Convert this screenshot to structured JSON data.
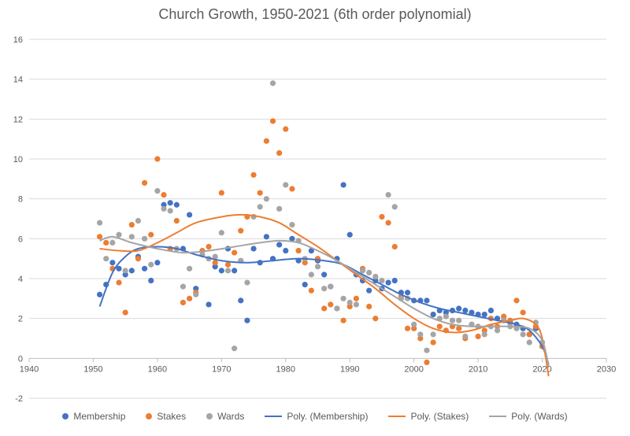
{
  "chart_data": {
    "type": "scatter",
    "title": "Church Growth, 1950-2021 (6th order polynomial)",
    "xlim": [
      1940,
      2030
    ],
    "ylim": [
      -2,
      16
    ],
    "x_ticks": [
      1940,
      1950,
      1960,
      1970,
      1980,
      1990,
      2000,
      2010,
      2020,
      2030
    ],
    "y_ticks": [
      -2,
      0,
      2,
      4,
      6,
      8,
      10,
      12,
      14,
      16
    ],
    "grid": "horizontal",
    "legend_position": "bottom",
    "series": [
      {
        "name": "Membership",
        "color": "#4472C4",
        "points": [
          [
            1951,
            3.2
          ],
          [
            1952,
            3.7
          ],
          [
            1953,
            4.8
          ],
          [
            1954,
            4.5
          ],
          [
            1955,
            4.2
          ],
          [
            1956,
            4.4
          ],
          [
            1957,
            5.1
          ],
          [
            1958,
            4.5
          ],
          [
            1959,
            3.9
          ],
          [
            1960,
            4.8
          ],
          [
            1961,
            7.7
          ],
          [
            1962,
            7.8
          ],
          [
            1963,
            7.7
          ],
          [
            1964,
            5.5
          ],
          [
            1965,
            7.2
          ],
          [
            1966,
            3.5
          ],
          [
            1968,
            2.7
          ],
          [
            1969,
            4.6
          ],
          [
            1970,
            4.4
          ],
          [
            1971,
            5.5
          ],
          [
            1972,
            4.4
          ],
          [
            1973,
            2.9
          ],
          [
            1974,
            1.9
          ],
          [
            1975,
            5.5
          ],
          [
            1976,
            4.8
          ],
          [
            1977,
            6.1
          ],
          [
            1978,
            5.0
          ],
          [
            1979,
            5.7
          ],
          [
            1980,
            5.4
          ],
          [
            1981,
            6.0
          ],
          [
            1982,
            4.9
          ],
          [
            1983,
            3.7
          ],
          [
            1984,
            5.4
          ],
          [
            1985,
            4.9
          ],
          [
            1986,
            4.2
          ],
          [
            1987,
            3.6
          ],
          [
            1988,
            5.0
          ],
          [
            1989,
            8.7
          ],
          [
            1990,
            6.2
          ],
          [
            1991,
            4.2
          ],
          [
            1992,
            3.9
          ],
          [
            1993,
            3.4
          ],
          [
            1994,
            3.9
          ],
          [
            1995,
            3.5
          ],
          [
            1996,
            3.8
          ],
          [
            1997,
            3.9
          ],
          [
            1998,
            3.3
          ],
          [
            1999,
            3.3
          ],
          [
            2000,
            2.9
          ],
          [
            2001,
            2.9
          ],
          [
            2002,
            2.9
          ],
          [
            2003,
            2.2
          ],
          [
            2004,
            2.4
          ],
          [
            2005,
            2.3
          ],
          [
            2006,
            2.4
          ],
          [
            2007,
            2.5
          ],
          [
            2008,
            2.4
          ],
          [
            2009,
            2.3
          ],
          [
            2010,
            2.2
          ],
          [
            2011,
            2.2
          ],
          [
            2012,
            2.4
          ],
          [
            2013,
            2.0
          ],
          [
            2014,
            1.9
          ],
          [
            2015,
            1.8
          ],
          [
            2016,
            1.7
          ],
          [
            2017,
            1.5
          ],
          [
            2018,
            1.2
          ],
          [
            2019,
            1.5
          ],
          [
            2020,
            0.6
          ]
        ]
      },
      {
        "name": "Stakes",
        "color": "#ED7D31",
        "points": [
          [
            1951,
            6.1
          ],
          [
            1952,
            5.8
          ],
          [
            1953,
            4.5
          ],
          [
            1954,
            3.8
          ],
          [
            1955,
            2.3
          ],
          [
            1956,
            6.7
          ],
          [
            1957,
            5.0
          ],
          [
            1958,
            8.8
          ],
          [
            1959,
            6.2
          ],
          [
            1960,
            10.0
          ],
          [
            1961,
            8.2
          ],
          [
            1962,
            5.5
          ],
          [
            1963,
            6.9
          ],
          [
            1964,
            2.8
          ],
          [
            1965,
            3.0
          ],
          [
            1966,
            3.3
          ],
          [
            1967,
            5.4
          ],
          [
            1968,
            5.6
          ],
          [
            1969,
            4.8
          ],
          [
            1970,
            8.3
          ],
          [
            1971,
            4.7
          ],
          [
            1972,
            5.3
          ],
          [
            1973,
            6.4
          ],
          [
            1974,
            7.1
          ],
          [
            1975,
            9.2
          ],
          [
            1976,
            8.3
          ],
          [
            1977,
            10.9
          ],
          [
            1978,
            11.9
          ],
          [
            1979,
            10.3
          ],
          [
            1980,
            11.5
          ],
          [
            1981,
            8.5
          ],
          [
            1982,
            5.4
          ],
          [
            1983,
            4.8
          ],
          [
            1984,
            3.4
          ],
          [
            1985,
            5.0
          ],
          [
            1986,
            2.5
          ],
          [
            1987,
            2.7
          ],
          [
            1988,
            2.5
          ],
          [
            1989,
            1.9
          ],
          [
            1990,
            2.6
          ],
          [
            1991,
            3.0
          ],
          [
            1992,
            4.5
          ],
          [
            1993,
            2.6
          ],
          [
            1994,
            2.0
          ],
          [
            1995,
            7.1
          ],
          [
            1996,
            6.8
          ],
          [
            1997,
            5.6
          ],
          [
            1998,
            3.1
          ],
          [
            1999,
            1.5
          ],
          [
            2000,
            1.5
          ],
          [
            2001,
            1.0
          ],
          [
            2002,
            -0.2
          ],
          [
            2003,
            0.8
          ],
          [
            2004,
            1.6
          ],
          [
            2005,
            1.4
          ],
          [
            2006,
            1.6
          ],
          [
            2007,
            1.5
          ],
          [
            2008,
            1.0
          ],
          [
            2009,
            1.7
          ],
          [
            2010,
            1.1
          ],
          [
            2011,
            1.4
          ],
          [
            2012,
            2.0
          ],
          [
            2013,
            1.6
          ],
          [
            2014,
            2.1
          ],
          [
            2015,
            1.9
          ],
          [
            2016,
            2.9
          ],
          [
            2017,
            2.3
          ],
          [
            2018,
            1.2
          ],
          [
            2019,
            1.6
          ],
          [
            2020,
            0.6
          ]
        ]
      },
      {
        "name": "Wards",
        "color": "#A5A5A5",
        "points": [
          [
            1951,
            6.8
          ],
          [
            1952,
            5.0
          ],
          [
            1953,
            5.8
          ],
          [
            1954,
            6.2
          ],
          [
            1955,
            4.4
          ],
          [
            1956,
            6.1
          ],
          [
            1957,
            6.9
          ],
          [
            1958,
            6.0
          ],
          [
            1959,
            4.7
          ],
          [
            1960,
            8.4
          ],
          [
            1961,
            7.5
          ],
          [
            1962,
            7.4
          ],
          [
            1963,
            5.5
          ],
          [
            1964,
            3.6
          ],
          [
            1965,
            4.5
          ],
          [
            1966,
            3.2
          ],
          [
            1967,
            5.2
          ],
          [
            1968,
            5.0
          ],
          [
            1969,
            5.1
          ],
          [
            1970,
            6.3
          ],
          [
            1971,
            4.4
          ],
          [
            1972,
            0.5
          ],
          [
            1973,
            4.9
          ],
          [
            1974,
            3.8
          ],
          [
            1975,
            7.1
          ],
          [
            1976,
            7.6
          ],
          [
            1977,
            8.0
          ],
          [
            1978,
            13.8
          ],
          [
            1979,
            7.5
          ],
          [
            1980,
            8.7
          ],
          [
            1981,
            6.7
          ],
          [
            1982,
            5.9
          ],
          [
            1983,
            5.0
          ],
          [
            1984,
            4.2
          ],
          [
            1985,
            4.6
          ],
          [
            1986,
            3.5
          ],
          [
            1987,
            3.6
          ],
          [
            1988,
            2.5
          ],
          [
            1989,
            3.0
          ],
          [
            1990,
            2.8
          ],
          [
            1991,
            2.7
          ],
          [
            1992,
            4.4
          ],
          [
            1993,
            4.3
          ],
          [
            1994,
            4.1
          ],
          [
            1995,
            3.9
          ],
          [
            1996,
            8.2
          ],
          [
            1997,
            7.6
          ],
          [
            1998,
            3.0
          ],
          [
            1999,
            3.0
          ],
          [
            2000,
            1.7
          ],
          [
            2001,
            1.2
          ],
          [
            2002,
            0.4
          ],
          [
            2003,
            1.2
          ],
          [
            2004,
            2.0
          ],
          [
            2005,
            2.1
          ],
          [
            2006,
            1.9
          ],
          [
            2007,
            1.9
          ],
          [
            2008,
            1.1
          ],
          [
            2009,
            1.7
          ],
          [
            2010,
            1.6
          ],
          [
            2011,
            1.2
          ],
          [
            2012,
            1.6
          ],
          [
            2013,
            1.4
          ],
          [
            2014,
            1.9
          ],
          [
            2015,
            1.6
          ],
          [
            2016,
            1.5
          ],
          [
            2017,
            1.2
          ],
          [
            2018,
            0.8
          ],
          [
            2019,
            1.8
          ],
          [
            2020,
            0.8
          ]
        ]
      }
    ],
    "trendlines": [
      {
        "name": "Poly. (Membership)",
        "color": "#4472C4",
        "points": [
          [
            1951,
            2.6
          ],
          [
            1953,
            4.3
          ],
          [
            1955,
            5.1
          ],
          [
            1957,
            5.5
          ],
          [
            1960,
            5.6
          ],
          [
            1963,
            5.5
          ],
          [
            1966,
            5.2
          ],
          [
            1970,
            4.9
          ],
          [
            1974,
            4.8
          ],
          [
            1978,
            4.9
          ],
          [
            1982,
            5.0
          ],
          [
            1986,
            4.9
          ],
          [
            1989,
            4.7
          ],
          [
            1992,
            4.2
          ],
          [
            1995,
            3.7
          ],
          [
            1998,
            3.2
          ],
          [
            2001,
            2.8
          ],
          [
            2004,
            2.5
          ],
          [
            2007,
            2.3
          ],
          [
            2010,
            2.1
          ],
          [
            2013,
            1.9
          ],
          [
            2016,
            1.7
          ],
          [
            2018,
            1.4
          ],
          [
            2020,
            0.6
          ],
          [
            2021,
            -0.3
          ]
        ]
      },
      {
        "name": "Poly. (Stakes)",
        "color": "#ED7D31",
        "points": [
          [
            1951,
            5.5
          ],
          [
            1954,
            5.4
          ],
          [
            1957,
            5.4
          ],
          [
            1960,
            5.8
          ],
          [
            1963,
            6.3
          ],
          [
            1966,
            6.8
          ],
          [
            1970,
            7.1
          ],
          [
            1973,
            7.2
          ],
          [
            1976,
            7.1
          ],
          [
            1979,
            6.8
          ],
          [
            1982,
            6.2
          ],
          [
            1985,
            5.6
          ],
          [
            1988,
            4.9
          ],
          [
            1991,
            4.2
          ],
          [
            1994,
            3.5
          ],
          [
            1997,
            2.7
          ],
          [
            2000,
            2.0
          ],
          [
            2003,
            1.5
          ],
          [
            2006,
            1.3
          ],
          [
            2009,
            1.4
          ],
          [
            2012,
            1.7
          ],
          [
            2015,
            1.9
          ],
          [
            2017,
            2.0
          ],
          [
            2019,
            1.7
          ],
          [
            2020,
            1.0
          ],
          [
            2021,
            -0.9
          ]
        ]
      },
      {
        "name": "Poly. (Wards)",
        "color": "#A5A5A5",
        "points": [
          [
            1951,
            5.9
          ],
          [
            1953,
            6.1
          ],
          [
            1956,
            5.8
          ],
          [
            1960,
            5.5
          ],
          [
            1964,
            5.3
          ],
          [
            1968,
            5.4
          ],
          [
            1972,
            5.6
          ],
          [
            1976,
            5.8
          ],
          [
            1979,
            5.9
          ],
          [
            1982,
            5.8
          ],
          [
            1985,
            5.4
          ],
          [
            1988,
            4.9
          ],
          [
            1991,
            4.3
          ],
          [
            1994,
            3.7
          ],
          [
            1997,
            3.1
          ],
          [
            2000,
            2.5
          ],
          [
            2003,
            2.0
          ],
          [
            2006,
            1.7
          ],
          [
            2009,
            1.6
          ],
          [
            2012,
            1.6
          ],
          [
            2015,
            1.6
          ],
          [
            2018,
            1.5
          ],
          [
            2020,
            0.9
          ],
          [
            2021,
            -0.4
          ]
        ]
      }
    ]
  }
}
